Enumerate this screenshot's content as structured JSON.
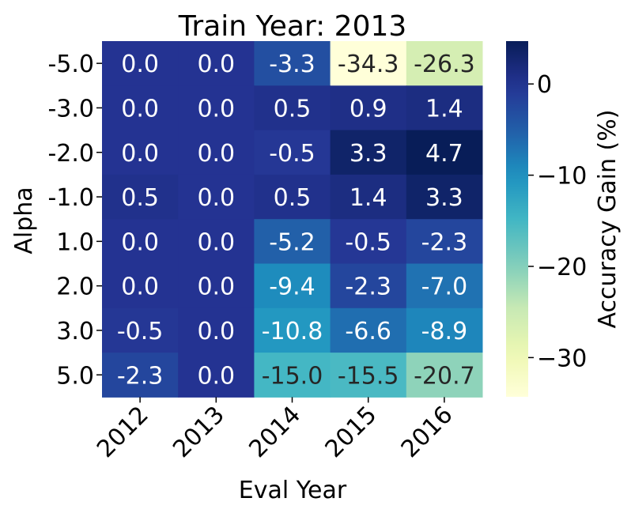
{
  "chart_data": {
    "type": "heatmap",
    "title": "Train Year: 2013",
    "xlabel": "Eval Year",
    "ylabel": "Alpha",
    "x_categories": [
      "2012",
      "2013",
      "2014",
      "2015",
      "2016"
    ],
    "y_categories": [
      "-5.0",
      "-3.0",
      "-2.0",
      "-1.0",
      "1.0",
      "2.0",
      "3.0",
      "5.0"
    ],
    "values": [
      [
        0.0,
        0.0,
        -3.3,
        -34.3,
        -26.3
      ],
      [
        0.0,
        0.0,
        0.5,
        0.9,
        1.4
      ],
      [
        0.0,
        0.0,
        -0.5,
        3.3,
        4.7
      ],
      [
        0.5,
        0.0,
        0.5,
        1.4,
        3.3
      ],
      [
        0.0,
        0.0,
        -5.2,
        -0.5,
        -2.3
      ],
      [
        0.0,
        0.0,
        -9.4,
        -2.3,
        -7.0
      ],
      [
        -0.5,
        0.0,
        -10.8,
        -6.6,
        -8.9
      ],
      [
        -2.3,
        0.0,
        -15.0,
        -15.5,
        -20.7
      ]
    ],
    "colorbar": {
      "label": "Accuracy Gain (%)",
      "vmin": -34.3,
      "vmax": 4.7,
      "ticks": [
        0,
        -10,
        -20,
        -30
      ],
      "tick_labels": [
        "0",
        "−10",
        "−20",
        "−30"
      ],
      "colormap": "YlGnBu"
    }
  }
}
